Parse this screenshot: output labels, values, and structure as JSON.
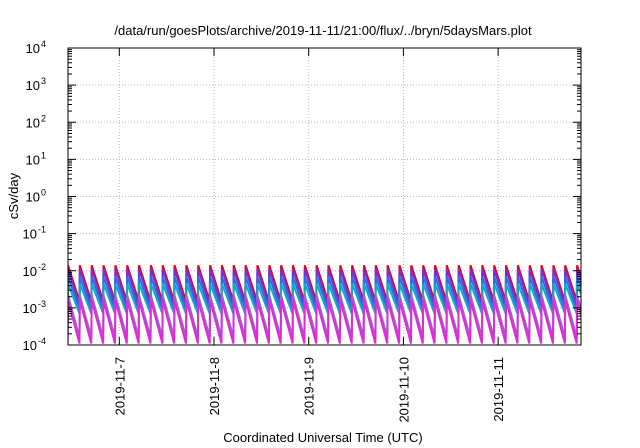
{
  "chart_data": {
    "type": "line",
    "title": "/data/run/goesPlots/archive/2019-11-11/21:00/flux/../bryn/5daysMars.plot",
    "xlabel": "Coordinated Universal Time (UTC)",
    "ylabel": "cSv/day",
    "y_scale": "log",
    "ylim": [
      0.0001,
      10000
    ],
    "y_ticks": [
      {
        "base": "10",
        "exp": "-4"
      },
      {
        "base": "10",
        "exp": "-3"
      },
      {
        "base": "10",
        "exp": "-2"
      },
      {
        "base": "10",
        "exp": "-1"
      },
      {
        "base": "10",
        "exp": "0"
      },
      {
        "base": "10",
        "exp": "1"
      },
      {
        "base": "10",
        "exp": "2"
      },
      {
        "base": "10",
        "exp": "3"
      },
      {
        "base": "10",
        "exp": "4"
      }
    ],
    "xlim": [
      "2019-11-06 11:00",
      "2019-11-11 21:00"
    ],
    "x_ticks": [
      "2019-11-7",
      "2019-11-8",
      "2019-11-9",
      "2019-11-10",
      "2019-11-11"
    ],
    "grid": true,
    "cycle_hours": 3,
    "series": [
      {
        "color": "#e8001c",
        "peak": 0.014,
        "trough": 0.0015
      },
      {
        "color": "#7a2fd0",
        "peak": 0.011,
        "trough": 0.0012
      },
      {
        "color": "#2b6fe0",
        "peak": 0.007,
        "trough": 0.0009
      },
      {
        "color": "#16a6c8",
        "peak": 0.0045,
        "trough": 0.0007
      },
      {
        "color": "#8e6cc6",
        "peak": 0.0022,
        "trough": 0.00016
      },
      {
        "color": "#e02ad8",
        "peak": 0.0016,
        "trough": 0.00011
      }
    ]
  }
}
